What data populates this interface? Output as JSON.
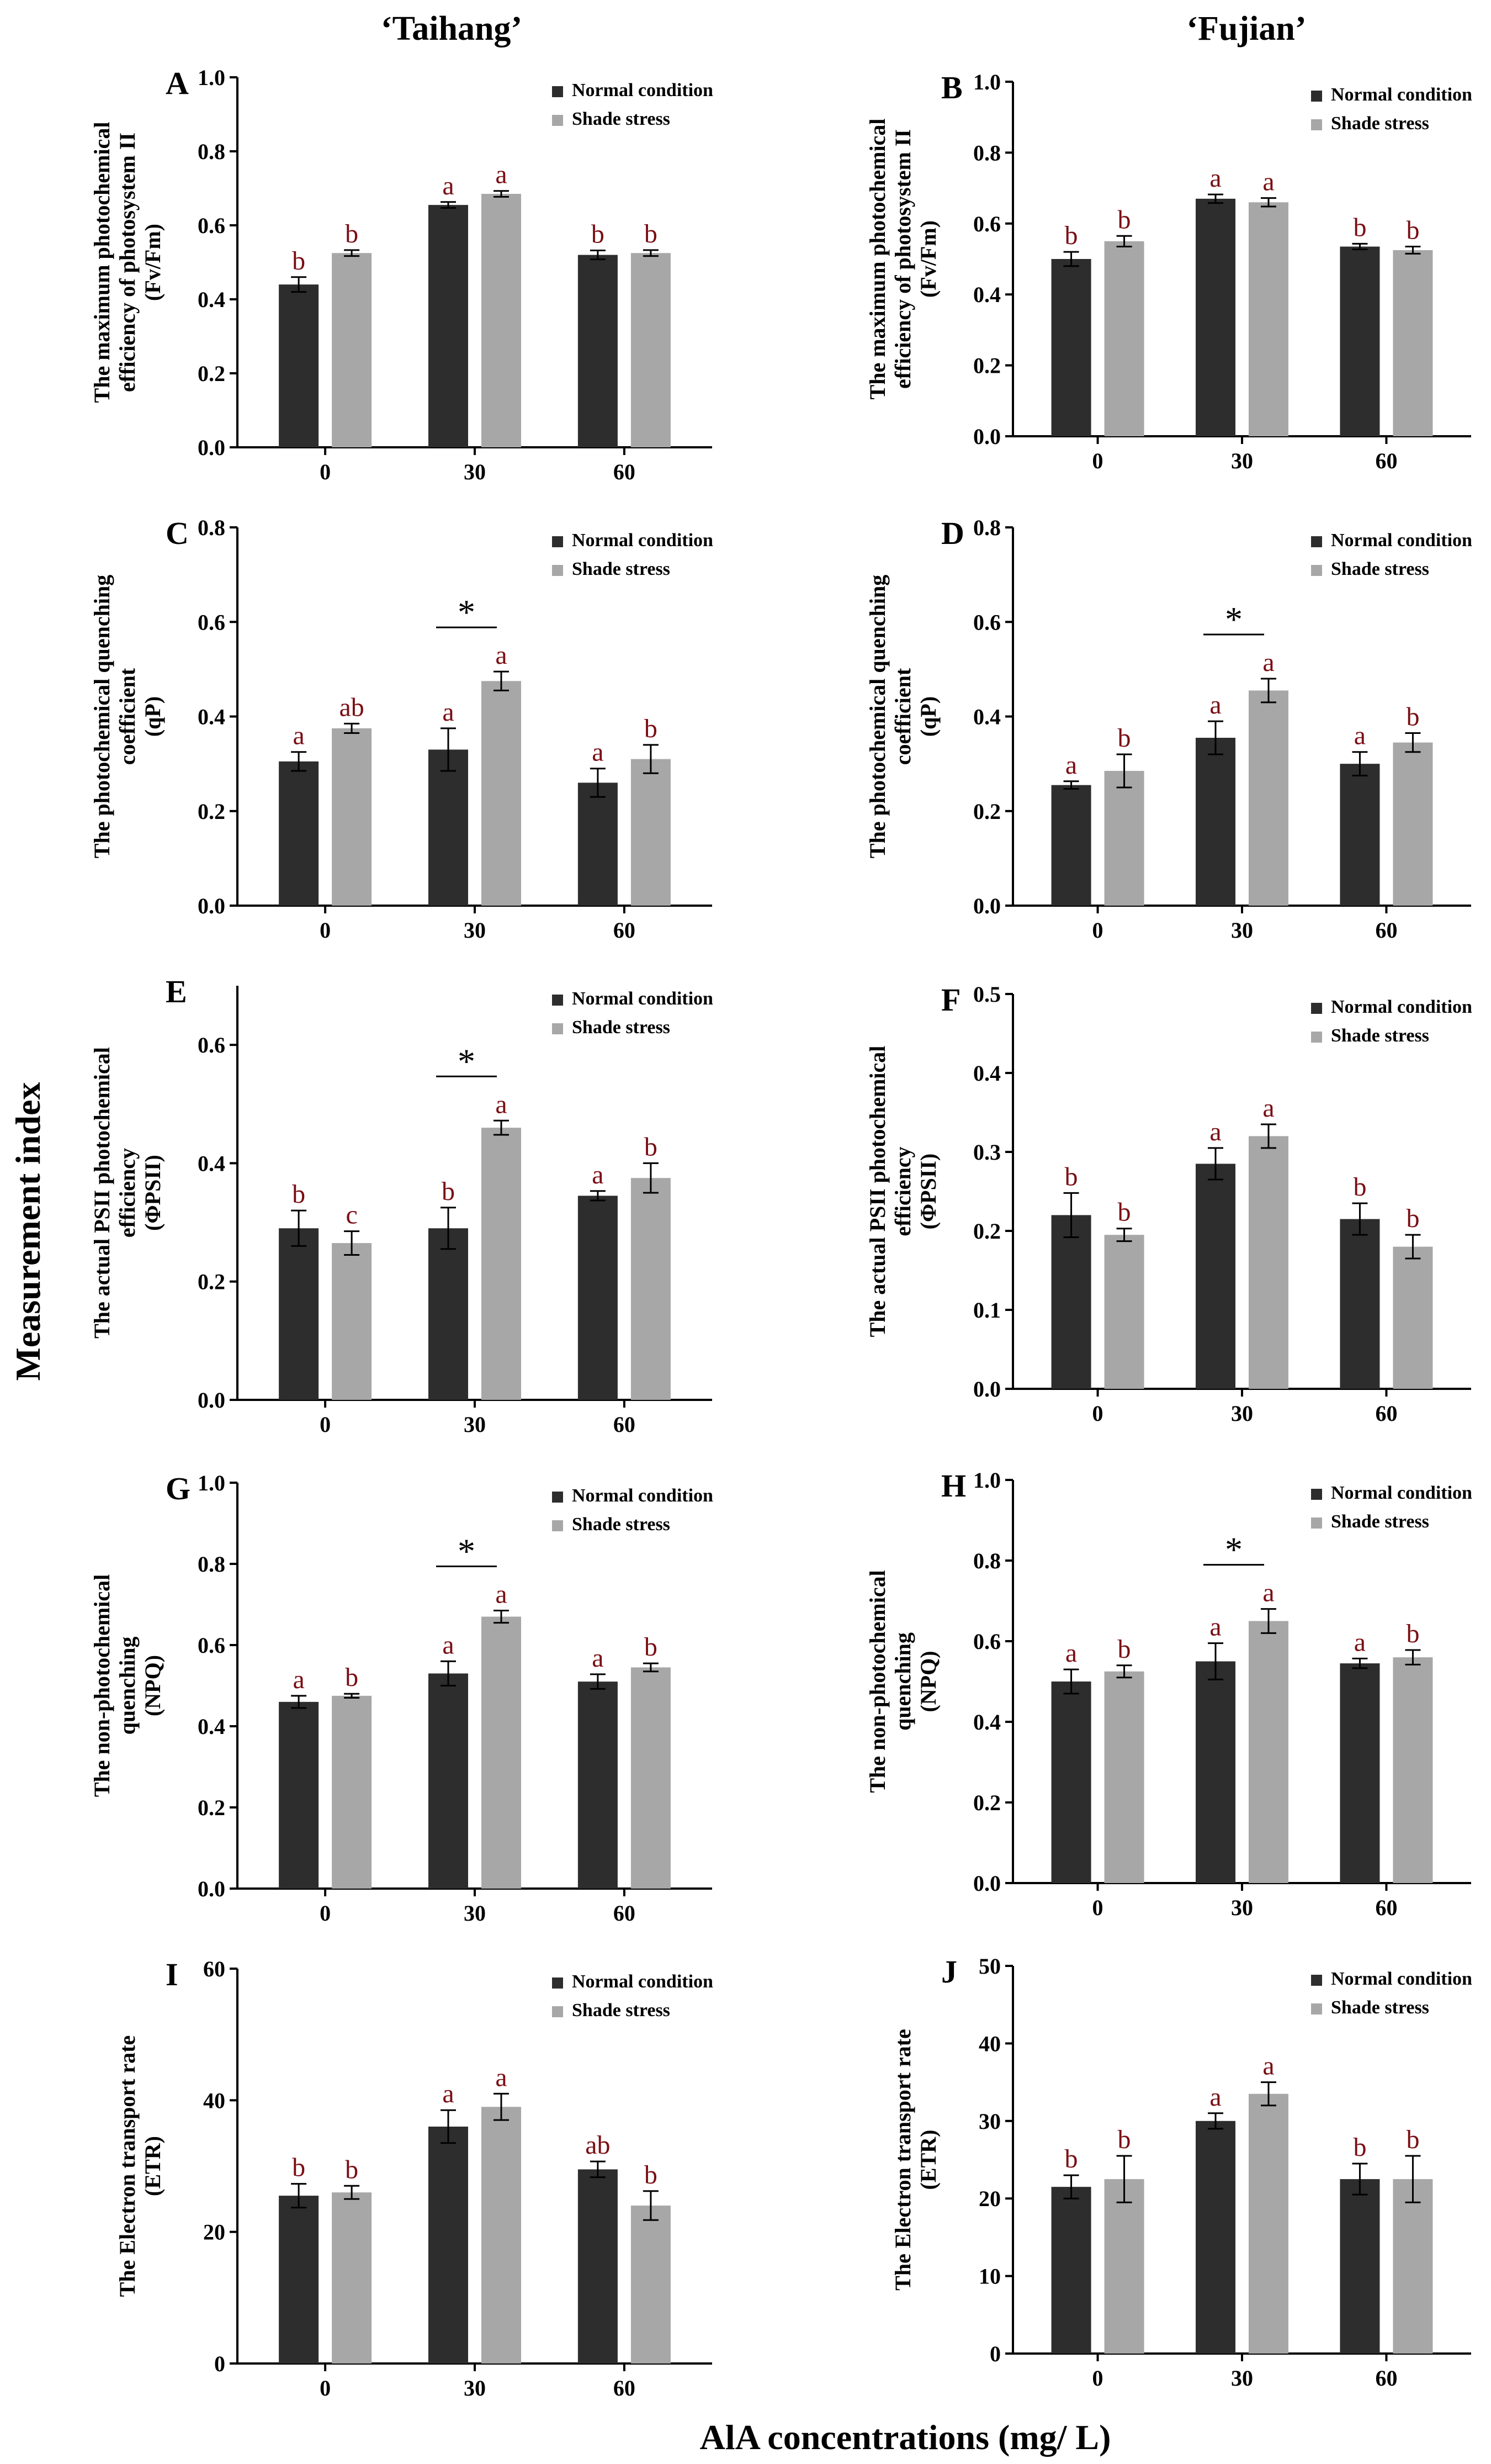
{
  "figure": {
    "column_titles": [
      "‘Taihang’",
      "‘Fujian’"
    ],
    "y_global_label": "Measurement index",
    "x_global_label": "AlA concentrations (mg/ L)"
  },
  "colors": {
    "normal": "#2d2d2d",
    "shade": "#a7a7a7",
    "significance": "#7a0f14"
  },
  "chart_data": [
    {
      "id": "A",
      "type": "bar",
      "cultivar": "Taihang",
      "ylabel": [
        "The maximum photochemical",
        "efficiency of photosystem II",
        "(Fv/Fm)"
      ],
      "categories": [
        "0",
        "30",
        "60"
      ],
      "ylim": [
        0,
        1.0
      ],
      "yticks": [
        0.0,
        0.2,
        0.4,
        0.6,
        0.8,
        1.0
      ],
      "tick_labels": [
        "0.0",
        "0.2",
        "0.4",
        "0.6",
        "0.8",
        "1.0"
      ],
      "legend": [
        "Normal condition",
        "Shade stress"
      ],
      "series": [
        {
          "name": "Normal condition",
          "values": [
            0.44,
            0.655,
            0.52
          ],
          "errors": [
            0.02,
            0.008,
            0.012
          ],
          "letters": [
            "b",
            "a",
            "b"
          ]
        },
        {
          "name": "Shade stress",
          "values": [
            0.525,
            0.685,
            0.525
          ],
          "errors": [
            0.008,
            0.008,
            0.008
          ],
          "letters": [
            "b",
            "a",
            "b"
          ]
        }
      ],
      "star_categories": []
    },
    {
      "id": "B",
      "type": "bar",
      "cultivar": "Fujian",
      "ylabel": [
        "The maximum photochemical",
        "efficiency of photosystem II",
        "(Fv/Fm)"
      ],
      "categories": [
        "0",
        "30",
        "60"
      ],
      "ylim": [
        0,
        1.0
      ],
      "yticks": [
        0.0,
        0.2,
        0.4,
        0.6,
        0.8,
        1.0
      ],
      "tick_labels": [
        "0.0",
        "0.2",
        "0.4",
        "0.6",
        "0.8",
        "1.0"
      ],
      "legend": [
        "Normal condition",
        "Shade stress"
      ],
      "series": [
        {
          "name": "Normal condition",
          "values": [
            0.5,
            0.67,
            0.535
          ],
          "errors": [
            0.02,
            0.012,
            0.008
          ],
          "letters": [
            "b",
            "a",
            "b"
          ]
        },
        {
          "name": "Shade stress",
          "values": [
            0.55,
            0.66,
            0.525
          ],
          "errors": [
            0.015,
            0.012,
            0.01
          ],
          "letters": [
            "b",
            "a",
            "b"
          ]
        }
      ],
      "star_categories": []
    },
    {
      "id": "C",
      "type": "bar",
      "cultivar": "Taihang",
      "ylabel": [
        "The photochemical quenching",
        "coefficient",
        "(qP)"
      ],
      "categories": [
        "0",
        "30",
        "60"
      ],
      "ylim": [
        0,
        0.8
      ],
      "yticks": [
        0.0,
        0.2,
        0.4,
        0.6,
        0.8
      ],
      "tick_labels": [
        "0.0",
        "0.2",
        "0.4",
        "0.6",
        "0.8"
      ],
      "legend": [
        "Normal condition",
        "Shade stress"
      ],
      "series": [
        {
          "name": "Normal condition",
          "values": [
            0.305,
            0.33,
            0.26
          ],
          "errors": [
            0.02,
            0.045,
            0.03
          ],
          "letters": [
            "a",
            "a",
            "a"
          ]
        },
        {
          "name": "Shade stress",
          "values": [
            0.375,
            0.475,
            0.31
          ],
          "errors": [
            0.01,
            0.02,
            0.03
          ],
          "letters": [
            "ab",
            "a",
            "b"
          ]
        }
      ],
      "star_categories": [
        "30"
      ]
    },
    {
      "id": "D",
      "type": "bar",
      "cultivar": "Fujian",
      "ylabel": [
        "The photochemical quenching",
        "coefficient",
        "(qP)"
      ],
      "categories": [
        "0",
        "30",
        "60"
      ],
      "ylim": [
        0,
        0.8
      ],
      "yticks": [
        0.0,
        0.2,
        0.4,
        0.6,
        0.8
      ],
      "tick_labels": [
        "0.0",
        "0.2",
        "0.4",
        "0.6",
        "0.8"
      ],
      "legend": [
        "Normal condition",
        "Shade stress"
      ],
      "series": [
        {
          "name": "Normal condition",
          "values": [
            0.255,
            0.355,
            0.3
          ],
          "errors": [
            0.008,
            0.035,
            0.025
          ],
          "letters": [
            "a",
            "a",
            "a"
          ]
        },
        {
          "name": "Shade stress",
          "values": [
            0.285,
            0.455,
            0.345
          ],
          "errors": [
            0.035,
            0.025,
            0.02
          ],
          "letters": [
            "b",
            "a",
            "b"
          ]
        }
      ],
      "star_categories": [
        "30"
      ]
    },
    {
      "id": "E",
      "type": "bar",
      "cultivar": "Taihang",
      "ylabel": [
        "The actual PSII photochemical",
        "efficiency",
        "(ΦPSII)"
      ],
      "categories": [
        "0",
        "30",
        "60"
      ],
      "ylim": [
        0,
        0.7
      ],
      "yticks": [
        0.0,
        0.2,
        0.4,
        0.6
      ],
      "tick_labels": [
        "0.0",
        "0.2",
        "0.4",
        "0.6"
      ],
      "legend": [
        "Normal condition",
        "Shade stress"
      ],
      "series": [
        {
          "name": "Normal condition",
          "values": [
            0.29,
            0.29,
            0.345
          ],
          "errors": [
            0.03,
            0.035,
            0.008
          ],
          "letters": [
            "b",
            "b",
            "a"
          ]
        },
        {
          "name": "Shade stress",
          "values": [
            0.265,
            0.46,
            0.375
          ],
          "errors": [
            0.02,
            0.012,
            0.025
          ],
          "letters": [
            "c",
            "a",
            "b"
          ]
        }
      ],
      "star_categories": [
        "30"
      ]
    },
    {
      "id": "F",
      "type": "bar",
      "cultivar": "Fujian",
      "ylabel": [
        "The actual PSII photochemical",
        "efficiency",
        "(ΦPSII)"
      ],
      "categories": [
        "0",
        "30",
        "60"
      ],
      "ylim": [
        0,
        0.5
      ],
      "yticks": [
        0.0,
        0.1,
        0.2,
        0.3,
        0.4,
        0.5
      ],
      "tick_labels": [
        "0.0",
        "0.1",
        "0.2",
        "0.3",
        "0.4",
        "0.5"
      ],
      "legend": [
        "Normal condition",
        "Shade stress"
      ],
      "series": [
        {
          "name": "Normal condition",
          "values": [
            0.22,
            0.285,
            0.215
          ],
          "errors": [
            0.028,
            0.02,
            0.02
          ],
          "letters": [
            "b",
            "a",
            "b"
          ]
        },
        {
          "name": "Shade stress",
          "values": [
            0.195,
            0.32,
            0.18
          ],
          "errors": [
            0.008,
            0.015,
            0.015
          ],
          "letters": [
            "b",
            "a",
            "b"
          ]
        }
      ],
      "star_categories": []
    },
    {
      "id": "G",
      "type": "bar",
      "cultivar": "Taihang",
      "ylabel": [
        "The non-photochemical",
        "quenching",
        "(NPQ)"
      ],
      "categories": [
        "0",
        "30",
        "60"
      ],
      "ylim": [
        0,
        1.0
      ],
      "yticks": [
        0.0,
        0.2,
        0.4,
        0.6,
        0.8,
        1.0
      ],
      "tick_labels": [
        "0.0",
        "0.2",
        "0.4",
        "0.6",
        "0.8",
        "1.0"
      ],
      "legend": [
        "Normal condition",
        "Shade stress"
      ],
      "series": [
        {
          "name": "Normal condition",
          "values": [
            0.46,
            0.53,
            0.51
          ],
          "errors": [
            0.015,
            0.03,
            0.018
          ],
          "letters": [
            "a",
            "a",
            "a"
          ]
        },
        {
          "name": "Shade stress",
          "values": [
            0.475,
            0.67,
            0.545
          ],
          "errors": [
            0.005,
            0.015,
            0.01
          ],
          "letters": [
            "b",
            "a",
            "b"
          ]
        }
      ],
      "star_categories": [
        "30"
      ]
    },
    {
      "id": "H",
      "type": "bar",
      "cultivar": "Fujian",
      "ylabel": [
        "The non-photochemical",
        "quenching",
        "(NPQ)"
      ],
      "categories": [
        "0",
        "30",
        "60"
      ],
      "ylim": [
        0,
        1.0
      ],
      "yticks": [
        0.0,
        0.2,
        0.4,
        0.6,
        0.8,
        1.0
      ],
      "tick_labels": [
        "0.0",
        "0.2",
        "0.4",
        "0.6",
        "0.8",
        "1.0"
      ],
      "legend": [
        "Normal condition",
        "Shade stress"
      ],
      "series": [
        {
          "name": "Normal condition",
          "values": [
            0.5,
            0.55,
            0.545
          ],
          "errors": [
            0.03,
            0.045,
            0.012
          ],
          "letters": [
            "a",
            "a",
            "a"
          ]
        },
        {
          "name": "Shade stress",
          "values": [
            0.525,
            0.65,
            0.56
          ],
          "errors": [
            0.015,
            0.03,
            0.018
          ],
          "letters": [
            "b",
            "a",
            "b"
          ]
        }
      ],
      "star_categories": [
        "30"
      ]
    },
    {
      "id": "I",
      "type": "bar",
      "cultivar": "Taihang",
      "ylabel": [
        "The Electron transport rate",
        "(ETR)"
      ],
      "categories": [
        "0",
        "30",
        "60"
      ],
      "ylim": [
        0,
        60
      ],
      "yticks": [
        0,
        20,
        40,
        60
      ],
      "tick_labels": [
        "0",
        "20",
        "40",
        "60"
      ],
      "legend": [
        "Normal condition",
        "Shade stress"
      ],
      "series": [
        {
          "name": "Normal condition",
          "values": [
            25.5,
            36,
            29.5
          ],
          "errors": [
            1.8,
            2.5,
            1.2
          ],
          "letters": [
            "b",
            "a",
            "ab"
          ]
        },
        {
          "name": "Shade stress",
          "values": [
            26,
            39,
            24
          ],
          "errors": [
            1.0,
            2.0,
            2.2
          ],
          "letters": [
            "b",
            "a",
            "b"
          ]
        }
      ],
      "star_categories": []
    },
    {
      "id": "J",
      "type": "bar",
      "cultivar": "Fujian",
      "ylabel": [
        "The Electron transport rate",
        "(ETR)"
      ],
      "categories": [
        "0",
        "30",
        "60"
      ],
      "ylim": [
        0,
        50
      ],
      "yticks": [
        0,
        10,
        20,
        30,
        40,
        50
      ],
      "tick_labels": [
        "0",
        "10",
        "20",
        "30",
        "40",
        "50"
      ],
      "legend": [
        "Normal condition",
        "Shade stress"
      ],
      "series": [
        {
          "name": "Normal condition",
          "values": [
            21.5,
            30,
            22.5
          ],
          "errors": [
            1.5,
            1.0,
            2.0
          ],
          "letters": [
            "b",
            "a",
            "b"
          ]
        },
        {
          "name": "Shade stress",
          "values": [
            22.5,
            33.5,
            22.5
          ],
          "errors": [
            3.0,
            1.5,
            3.0
          ],
          "letters": [
            "b",
            "a",
            "b"
          ]
        }
      ],
      "star_categories": []
    }
  ]
}
